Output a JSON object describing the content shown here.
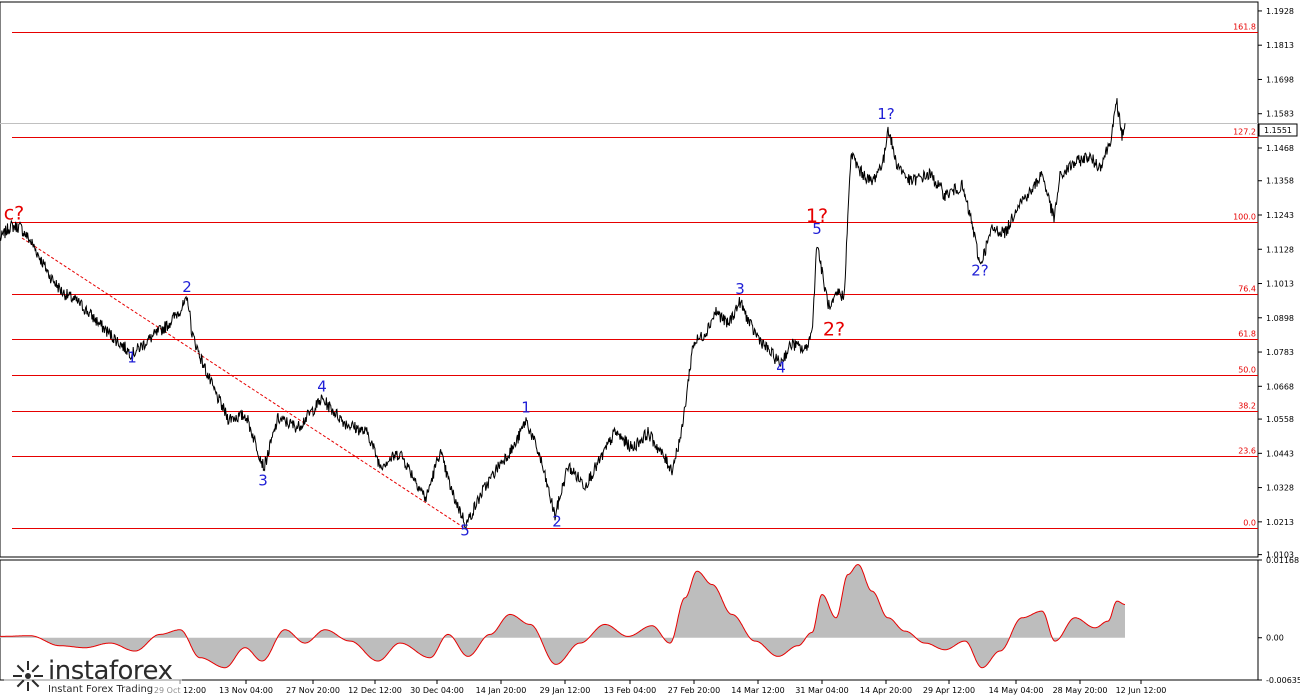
{
  "chart_data": [
    {
      "type": "line",
      "symbol_price": "1.1551",
      "y_ticks": [
        "1.1928",
        "1.1813",
        "1.1698",
        "1.1583",
        "1.1468",
        "1.1358",
        "1.1243",
        "1.1128",
        "1.1013",
        "1.0898",
        "1.0783",
        "1.0668",
        "1.0558",
        "1.0443",
        "1.0328",
        "1.0213",
        "1.0103"
      ],
      "x_ticks": [
        "29 Oct 12:00",
        "13 Nov 04:00",
        "27 Nov 20:00",
        "12 Dec 12:00",
        "30 Dec 04:00",
        "14 Jan 20:00",
        "29 Jan 12:00",
        "13 Feb 04:00",
        "27 Feb 20:00",
        "14 Mar 12:00",
        "31 Mar 04:00",
        "14 Apr 20:00",
        "29 Apr 12:00",
        "14 May 04:00",
        "28 May 20:00",
        "12 Jun 12:00"
      ],
      "ylim": [
        1.0095,
        1.1958
      ],
      "fib_levels": [
        {
          "label": "161.8",
          "value": 1.1858
        },
        {
          "label": "127.2",
          "value": 1.1504
        },
        {
          "label": "100.0",
          "value": 1.1219
        },
        {
          "label": "76.4",
          "value": 1.0977
        },
        {
          "label": "61.8",
          "value": 1.0828
        },
        {
          "label": "50.0",
          "value": 1.0706
        },
        {
          "label": "38.2",
          "value": 1.0585
        },
        {
          "label": "23.6",
          "value": 1.0434
        },
        {
          "label": "0.0",
          "value": 1.0193
        }
      ],
      "current_price_line": 1.1551,
      "price_anchors": [
        {
          "t": 0,
          "p": 1.1162
        },
        {
          "t": 10,
          "p": 1.1205
        },
        {
          "t": 20,
          "p": 1.1203
        },
        {
          "t": 32,
          "p": 1.1148
        },
        {
          "t": 50,
          "p": 1.1038
        },
        {
          "t": 62,
          "p": 1.0985
        },
        {
          "t": 80,
          "p": 1.0945
        },
        {
          "t": 100,
          "p": 1.0875
        },
        {
          "t": 118,
          "p": 1.0818
        },
        {
          "t": 132,
          "p": 1.0776
        },
        {
          "t": 150,
          "p": 1.0828
        },
        {
          "t": 168,
          "p": 1.0875
        },
        {
          "t": 188,
          "p": 1.0958
        },
        {
          "t": 192,
          "p": 1.0845
        },
        {
          "t": 202,
          "p": 1.0752
        },
        {
          "t": 214,
          "p": 1.0655
        },
        {
          "t": 228,
          "p": 1.056
        },
        {
          "t": 246,
          "p": 1.057
        },
        {
          "t": 264,
          "p": 1.0395
        },
        {
          "t": 278,
          "p": 1.056
        },
        {
          "t": 298,
          "p": 1.053
        },
        {
          "t": 322,
          "p": 1.0625
        },
        {
          "t": 345,
          "p": 1.0545
        },
        {
          "t": 368,
          "p": 1.051
        },
        {
          "t": 380,
          "p": 1.0402
        },
        {
          "t": 400,
          "p": 1.0445
        },
        {
          "t": 426,
          "p": 1.029
        },
        {
          "t": 440,
          "p": 1.045
        },
        {
          "t": 452,
          "p": 1.0312
        },
        {
          "t": 466,
          "p": 1.0203
        },
        {
          "t": 482,
          "p": 1.0312
        },
        {
          "t": 500,
          "p": 1.0408
        },
        {
          "t": 515,
          "p": 1.047
        },
        {
          "t": 526,
          "p": 1.0555
        },
        {
          "t": 540,
          "p": 1.043
        },
        {
          "t": 555,
          "p": 1.0232
        },
        {
          "t": 568,
          "p": 1.04
        },
        {
          "t": 585,
          "p": 1.0335
        },
        {
          "t": 600,
          "p": 1.042
        },
        {
          "t": 615,
          "p": 1.0515
        },
        {
          "t": 632,
          "p": 1.046
        },
        {
          "t": 648,
          "p": 1.0512
        },
        {
          "t": 662,
          "p": 1.044
        },
        {
          "t": 672,
          "p": 1.0388
        },
        {
          "t": 682,
          "p": 1.052
        },
        {
          "t": 693,
          "p": 1.081
        },
        {
          "t": 705,
          "p": 1.0845
        },
        {
          "t": 716,
          "p": 1.092
        },
        {
          "t": 728,
          "p": 1.0875
        },
        {
          "t": 740,
          "p": 1.0952
        },
        {
          "t": 752,
          "p": 1.0862
        },
        {
          "t": 766,
          "p": 1.0798
        },
        {
          "t": 780,
          "p": 1.0745
        },
        {
          "t": 792,
          "p": 1.0812
        },
        {
          "t": 805,
          "p": 1.0788
        },
        {
          "t": 812,
          "p": 1.085
        },
        {
          "t": 817,
          "p": 1.1155
        },
        {
          "t": 824,
          "p": 1.101
        },
        {
          "t": 830,
          "p": 1.092
        },
        {
          "t": 838,
          "p": 1.0985
        },
        {
          "t": 844,
          "p": 1.0965
        },
        {
          "t": 851,
          "p": 1.145
        },
        {
          "t": 860,
          "p": 1.139
        },
        {
          "t": 872,
          "p": 1.1352
        },
        {
          "t": 884,
          "p": 1.143
        },
        {
          "t": 888,
          "p": 1.154
        },
        {
          "t": 896,
          "p": 1.142
        },
        {
          "t": 910,
          "p": 1.1355
        },
        {
          "t": 930,
          "p": 1.138
        },
        {
          "t": 945,
          "p": 1.131
        },
        {
          "t": 962,
          "p": 1.134
        },
        {
          "t": 972,
          "p": 1.1215
        },
        {
          "t": 980,
          "p": 1.1075
        },
        {
          "t": 992,
          "p": 1.1195
        },
        {
          "t": 1006,
          "p": 1.1185
        },
        {
          "t": 1018,
          "p": 1.128
        },
        {
          "t": 1032,
          "p": 1.1325
        },
        {
          "t": 1042,
          "p": 1.1385
        },
        {
          "t": 1054,
          "p": 1.1228
        },
        {
          "t": 1060,
          "p": 1.137
        },
        {
          "t": 1072,
          "p": 1.1412
        },
        {
          "t": 1088,
          "p": 1.144
        },
        {
          "t": 1100,
          "p": 1.1405
        },
        {
          "t": 1110,
          "p": 1.1488
        },
        {
          "t": 1117,
          "p": 1.162
        },
        {
          "t": 1122,
          "p": 1.1508
        },
        {
          "t": 1125,
          "p": 1.1551
        }
      ],
      "wave_labels": [
        {
          "text": "c?",
          "t": 14,
          "p": 1.1228,
          "color": "red"
        },
        {
          "text": "1",
          "t": 132,
          "p": 1.0748,
          "color": "blue"
        },
        {
          "text": "2",
          "t": 187,
          "p": 1.0985,
          "color": "blue"
        },
        {
          "text": "3",
          "t": 263,
          "p": 1.0335,
          "color": "blue"
        },
        {
          "text": "4",
          "t": 322,
          "p": 1.065,
          "color": "blue"
        },
        {
          "text": "5",
          "t": 465,
          "p": 1.0168,
          "color": "blue"
        },
        {
          "text": "1",
          "t": 526,
          "p": 1.058,
          "color": "blue"
        },
        {
          "text": "2",
          "t": 557,
          "p": 1.0198,
          "color": "blue"
        },
        {
          "text": "3",
          "t": 740,
          "p": 1.0978,
          "color": "blue"
        },
        {
          "text": "4",
          "t": 781,
          "p": 1.0715,
          "color": "blue"
        },
        {
          "text": "5",
          "t": 817,
          "p": 1.118,
          "color": "blue"
        },
        {
          "text": "1?",
          "t": 817,
          "p": 1.122,
          "color": "red"
        },
        {
          "text": "2?",
          "t": 834,
          "p": 1.0838,
          "color": "red"
        },
        {
          "text": "1?",
          "t": 886,
          "p": 1.1565,
          "color": "blue"
        },
        {
          "text": "2?",
          "t": 980,
          "p": 1.104,
          "color": "blue"
        }
      ],
      "oscillator": {
        "ylim": [
          -0.00635,
          0.01168
        ],
        "y_ticks": [
          "0.01168",
          "0.00",
          "-0.00635"
        ],
        "anchors": [
          {
            "t": 0,
            "v": 0.0002
          },
          {
            "t": 30,
            "v": 0.0003
          },
          {
            "t": 60,
            "v": -0.0012
          },
          {
            "t": 85,
            "v": -0.0015
          },
          {
            "t": 110,
            "v": -0.0008
          },
          {
            "t": 135,
            "v": -0.002
          },
          {
            "t": 160,
            "v": 0.0005
          },
          {
            "t": 180,
            "v": 0.0012
          },
          {
            "t": 200,
            "v": -0.003
          },
          {
            "t": 225,
            "v": -0.0045
          },
          {
            "t": 245,
            "v": -0.0015
          },
          {
            "t": 262,
            "v": -0.0035
          },
          {
            "t": 285,
            "v": 0.0012
          },
          {
            "t": 305,
            "v": -0.0008
          },
          {
            "t": 325,
            "v": 0.0012
          },
          {
            "t": 350,
            "v": -0.0005
          },
          {
            "t": 378,
            "v": -0.0035
          },
          {
            "t": 400,
            "v": -0.0008
          },
          {
            "t": 430,
            "v": -0.003
          },
          {
            "t": 448,
            "v": 0.0005
          },
          {
            "t": 468,
            "v": -0.0028
          },
          {
            "t": 490,
            "v": 0.0005
          },
          {
            "t": 510,
            "v": 0.0035
          },
          {
            "t": 530,
            "v": 0.002
          },
          {
            "t": 556,
            "v": -0.004
          },
          {
            "t": 580,
            "v": -0.0008
          },
          {
            "t": 605,
            "v": 0.002
          },
          {
            "t": 628,
            "v": 0.0002
          },
          {
            "t": 652,
            "v": 0.0018
          },
          {
            "t": 670,
            "v": -0.0008
          },
          {
            "t": 685,
            "v": 0.006
          },
          {
            "t": 697,
            "v": 0.01
          },
          {
            "t": 712,
            "v": 0.008
          },
          {
            "t": 732,
            "v": 0.0035
          },
          {
            "t": 755,
            "v": -0.0005
          },
          {
            "t": 778,
            "v": -0.0028
          },
          {
            "t": 798,
            "v": -0.0012
          },
          {
            "t": 812,
            "v": 0.0008
          },
          {
            "t": 822,
            "v": 0.0065
          },
          {
            "t": 836,
            "v": 0.003
          },
          {
            "t": 848,
            "v": 0.0095
          },
          {
            "t": 858,
            "v": 0.011
          },
          {
            "t": 872,
            "v": 0.007
          },
          {
            "t": 888,
            "v": 0.003
          },
          {
            "t": 905,
            "v": 0.001
          },
          {
            "t": 925,
            "v": -0.0008
          },
          {
            "t": 945,
            "v": -0.0018
          },
          {
            "t": 965,
            "v": -0.0005
          },
          {
            "t": 982,
            "v": -0.0045
          },
          {
            "t": 1000,
            "v": -0.002
          },
          {
            "t": 1022,
            "v": 0.003
          },
          {
            "t": 1042,
            "v": 0.004
          },
          {
            "t": 1055,
            "v": -0.0005
          },
          {
            "t": 1075,
            "v": 0.003
          },
          {
            "t": 1095,
            "v": 0.0015
          },
          {
            "t": 1108,
            "v": 0.0025
          },
          {
            "t": 1117,
            "v": 0.0055
          },
          {
            "t": 1125,
            "v": 0.005
          }
        ]
      }
    }
  ],
  "watermark": {
    "brand": "instaforex",
    "tagline": "Instant Forex Trading"
  },
  "colors": {
    "fib": "#e60000",
    "price": "#000000",
    "osc_fill": "#bdbdbd",
    "osc_line": "#e60000",
    "wave_blue": "#1f1fd6",
    "wave_red": "#e60000"
  }
}
